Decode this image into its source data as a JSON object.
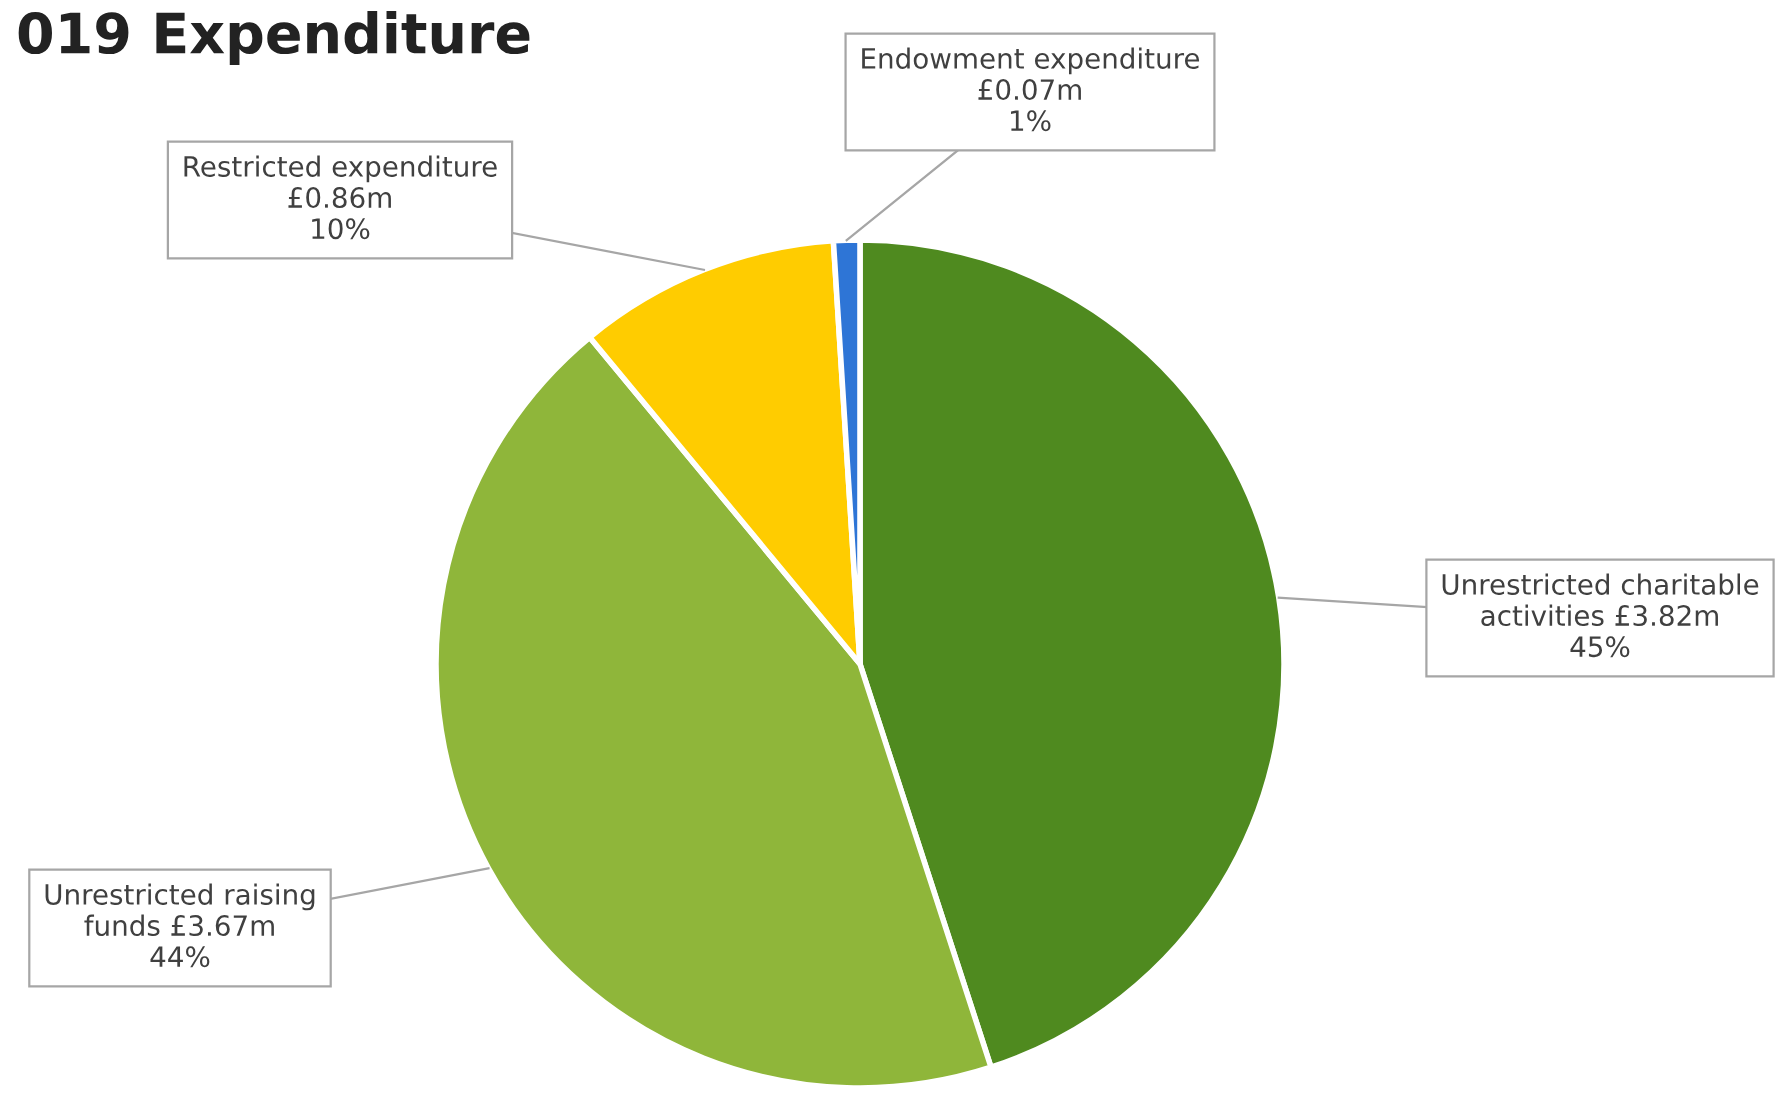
{
  "chart_data": {
    "type": "pie",
    "title": "019 Expenditure",
    "categories": [
      "Unrestricted charitable\nactivities £3.82m",
      "Unrestricted raising\nfunds £3.67m",
      "Restricted expenditure\n£0.86m",
      "Endowment expenditure\n£0.07m"
    ],
    "values": [
      45,
      44,
      10,
      1
    ],
    "value_labels": [
      "45%",
      "44%",
      "10%",
      "1%"
    ],
    "colors": [
      "#4f8a1f",
      "#8fb63a",
      "#ffcc00",
      "#2e75d6"
    ]
  }
}
